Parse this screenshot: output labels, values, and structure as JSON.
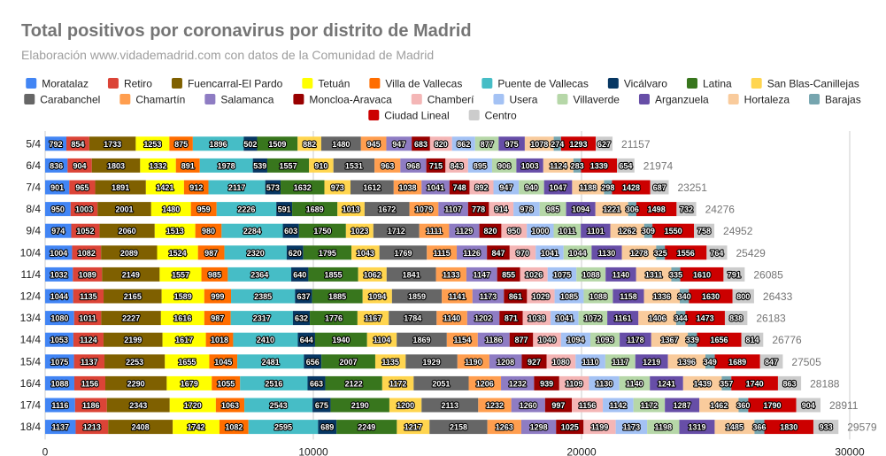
{
  "chart_data": {
    "type": "bar",
    "orientation": "horizontal",
    "stacked": true,
    "title": "Total positivos por coronavirus por distrito de Madrid",
    "subtitle": "Elaboración www.vidademadrid.com con datos de la Comunidad de Madrid",
    "xlabel": "",
    "ylabel": "",
    "xlim": [
      0,
      30000
    ],
    "x_ticks": [
      "0",
      "10000",
      "20000",
      "30000"
    ],
    "grid": true,
    "legend_position": "top",
    "categories": [
      "5/4",
      "6/4",
      "7/4",
      "8/4",
      "9/4",
      "10/4",
      "11/4",
      "12/4",
      "13/4",
      "14/4",
      "15/4",
      "16/4",
      "17/4",
      "18/4"
    ],
    "totals": [
      21157,
      21974,
      23251,
      24276,
      24952,
      25429,
      26085,
      26433,
      26183,
      26776,
      27505,
      28188,
      28911,
      29579
    ],
    "series": [
      {
        "name": "Moratalaz",
        "color": "#4285f4",
        "values": [
          792,
          836,
          901,
          950,
          974,
          1004,
          1032,
          1044,
          1080,
          1053,
          1075,
          1088,
          1116,
          1137
        ]
      },
      {
        "name": "Retiro",
        "color": "#db4437",
        "values": [
          854,
          904,
          965,
          1003,
          1052,
          1082,
          1089,
          1135,
          1011,
          1124,
          1137,
          1156,
          1186,
          1213
        ]
      },
      {
        "name": "Fuencarral-El Pardo",
        "color": "#7f6000",
        "values": [
          1733,
          1803,
          1891,
          2001,
          2060,
          2089,
          2149,
          2165,
          2227,
          2199,
          2253,
          2290,
          2343,
          2408
        ]
      },
      {
        "name": "Tetuán",
        "color": "#ffff00",
        "values": [
          1253,
          1332,
          1421,
          1480,
          1513,
          1524,
          1557,
          1589,
          1616,
          1617,
          1655,
          1679,
          1720,
          1742
        ]
      },
      {
        "name": "Villa de Vallecas",
        "color": "#ff6d00",
        "values": [
          875,
          891,
          912,
          959,
          980,
          987,
          985,
          999,
          987,
          1018,
          1045,
          1055,
          1063,
          1082
        ]
      },
      {
        "name": "Puente de Vallecas",
        "color": "#46bdc6",
        "values": [
          1896,
          1978,
          2117,
          2226,
          2284,
          2320,
          2364,
          2385,
          2317,
          2410,
          2481,
          2516,
          2543,
          2595
        ]
      },
      {
        "name": "Vicálvaro",
        "color": "#073763",
        "values": [
          502,
          539,
          573,
          591,
          603,
          620,
          640,
          637,
          632,
          644,
          656,
          663,
          675,
          689
        ]
      },
      {
        "name": "Latina",
        "color": "#38761d",
        "values": [
          1509,
          1557,
          1632,
          1689,
          1750,
          1795,
          1855,
          1885,
          1776,
          1940,
          2007,
          2122,
          2190,
          2249
        ]
      },
      {
        "name": "San Blas-Canillejas",
        "color": "#ffd54f",
        "values": [
          882,
          910,
          973,
          1013,
          1023,
          1043,
          1062,
          1094,
          1167,
          1104,
          1135,
          1172,
          1200,
          1217
        ]
      },
      {
        "name": "Carabanchel",
        "color": "#666666",
        "values": [
          1480,
          1531,
          1612,
          1672,
          1712,
          1769,
          1841,
          1859,
          1784,
          1869,
          1929,
          2051,
          2113,
          2158
        ]
      },
      {
        "name": "Chamartín",
        "color": "#ff9e4f",
        "values": [
          945,
          963,
          1038,
          1079,
          1111,
          1115,
          1133,
          1141,
          1140,
          1154,
          1190,
          1206,
          1232,
          1263
        ]
      },
      {
        "name": "Salamanca",
        "color": "#8e7cc3",
        "values": [
          947,
          968,
          1041,
          1107,
          1129,
          1126,
          1147,
          1173,
          1202,
          1186,
          1208,
          1232,
          1260,
          1298
        ]
      },
      {
        "name": "Moncloa-Aravaca",
        "color": "#990000",
        "values": [
          683,
          715,
          748,
          778,
          820,
          847,
          855,
          861,
          871,
          877,
          927,
          939,
          997,
          1025
        ]
      },
      {
        "name": "Chamberí",
        "color": "#f4b6b6",
        "values": [
          820,
          843,
          892,
          914,
          950,
          970,
          1026,
          1029,
          1038,
          1040,
          1080,
          1109,
          1156,
          1199
        ]
      },
      {
        "name": "Usera",
        "color": "#a4c2f4",
        "values": [
          862,
          895,
          947,
          978,
          1000,
          1041,
          1075,
          1085,
          1041,
          1094,
          1110,
          1130,
          1142,
          1173
        ]
      },
      {
        "name": "Villaverde",
        "color": "#b6d7a8",
        "values": [
          877,
          906,
          940,
          985,
          1011,
          1044,
          1088,
          1088,
          1072,
          1093,
          1117,
          1140,
          1172,
          1198
        ]
      },
      {
        "name": "Arganzuela",
        "color": "#674ea7",
        "values": [
          975,
          1003,
          1047,
          1094,
          1101,
          1130,
          1140,
          1158,
          1161,
          1178,
          1219,
          1241,
          1287,
          1319
        ]
      },
      {
        "name": "Hortaleza",
        "color": "#f9cb9c",
        "values": [
          1078,
          1124,
          1188,
          1221,
          1262,
          1278,
          1311,
          1336,
          1406,
          1367,
          1396,
          1439,
          1462,
          1485
        ]
      },
      {
        "name": "Barajas",
        "color": "#76a5af",
        "values": [
          274,
          283,
          298,
          306,
          309,
          325,
          335,
          340,
          344,
          339,
          349,
          357,
          360,
          366
        ]
      },
      {
        "name": "Ciudad Lineal",
        "color": "#cc0000",
        "values": [
          1293,
          1339,
          1428,
          1498,
          1550,
          1556,
          1610,
          1630,
          1473,
          1656,
          1689,
          1740,
          1790,
          1830
        ]
      },
      {
        "name": "Centro",
        "color": "#cccccc",
        "values": [
          627,
          654,
          687,
          732,
          758,
          764,
          791,
          800,
          838,
          814,
          847,
          863,
          904,
          933
        ]
      }
    ]
  }
}
